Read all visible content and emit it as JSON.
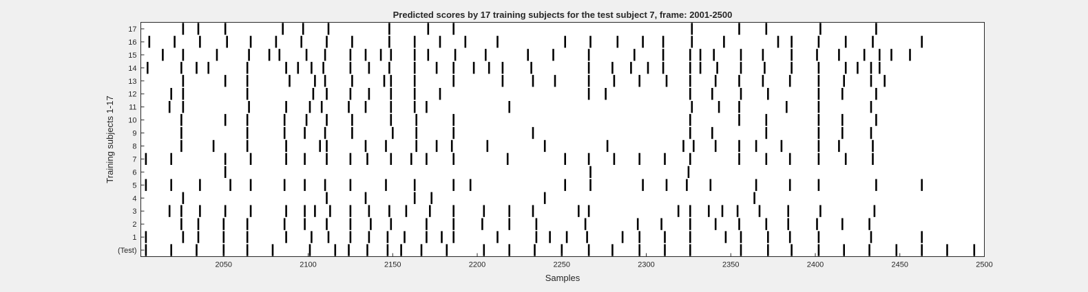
{
  "chart_data": {
    "type": "raster",
    "title": "Predicted scores by 17 training subjects for the test subject 7, frame: 2001-2500",
    "xlabel": "Samples",
    "ylabel": "Training subjects 1-17",
    "xlim": [
      2001,
      2500
    ],
    "xticks": [
      2050,
      2100,
      2150,
      2200,
      2250,
      2300,
      2350,
      2400,
      2450,
      2500
    ],
    "row_labels": [
      "(Test)",
      "1",
      "2",
      "3",
      "4",
      "5",
      "6",
      "7",
      "8",
      "9",
      "10",
      "11",
      "12",
      "13",
      "14",
      "15",
      "16",
      "17"
    ],
    "grid": false,
    "mark_color": "#000000",
    "rows": [
      [
        2004,
        2019,
        2034,
        2050,
        2064,
        2079,
        2101,
        2116,
        2124,
        2135,
        2147,
        2155,
        2167,
        2182,
        2204,
        2219,
        2234,
        2250,
        2266,
        2280,
        2296,
        2311,
        2326,
        2356,
        2372,
        2386,
        2402,
        2417,
        2432,
        2448,
        2463,
        2478,
        2494
      ],
      [
        2004,
        2026,
        2035,
        2050,
        2064,
        2087,
        2102,
        2112,
        2125,
        2136,
        2147,
        2157,
        2170,
        2179,
        2186,
        2212,
        2235,
        2243,
        2253,
        2265,
        2286,
        2296,
        2311,
        2326,
        2347,
        2356,
        2372,
        2385,
        2402,
        2433,
        2463
      ],
      [
        2025,
        2035,
        2050,
        2064,
        2086,
        2098,
        2111,
        2125,
        2137,
        2149,
        2170,
        2186,
        2203,
        2219,
        2235,
        2264,
        2295,
        2309,
        2326,
        2341,
        2355,
        2371,
        2384,
        2401,
        2416,
        2432
      ],
      [
        2018,
        2025,
        2036,
        2051,
        2066,
        2087,
        2098,
        2104,
        2113,
        2125,
        2136,
        2148,
        2158,
        2172,
        2186,
        2204,
        2219,
        2233,
        2260,
        2266,
        2319,
        2326,
        2337,
        2345,
        2354,
        2367,
        2384,
        2403,
        2435
      ],
      [
        2026,
        2111,
        2134,
        2163,
        2173,
        2240,
        2364
      ],
      [
        2004,
        2019,
        2036,
        2054,
        2066,
        2086,
        2098,
        2110,
        2125,
        2146,
        2163,
        2186,
        2196,
        2252,
        2267,
        2298,
        2312,
        2324,
        2338,
        2365,
        2385,
        2402,
        2436,
        2463
      ],
      [
        2051,
        2267,
        2325
      ],
      [
        2004,
        2019,
        2051,
        2066,
        2087,
        2098,
        2111,
        2125,
        2135,
        2149,
        2161,
        2170,
        2186,
        2218,
        2252,
        2266,
        2281,
        2296,
        2311,
        2326,
        2355,
        2371,
        2385,
        2402,
        2418,
        2434
      ],
      [
        2025,
        2044,
        2064,
        2087,
        2107,
        2111,
        2134,
        2146,
        2164,
        2176,
        2185,
        2206,
        2240,
        2277,
        2322,
        2328,
        2341,
        2355,
        2365,
        2380,
        2402,
        2414,
        2434
      ],
      [
        2025,
        2064,
        2086,
        2098,
        2110,
        2126,
        2150,
        2164,
        2186,
        2233,
        2326,
        2339,
        2371,
        2402,
        2416,
        2433
      ],
      [
        2025,
        2051,
        2064,
        2086,
        2099,
        2111,
        2126,
        2149,
        2164,
        2186,
        2326,
        2355,
        2371,
        2402,
        2416,
        2436
      ],
      [
        2018,
        2026,
        2065,
        2087,
        2101,
        2108,
        2124,
        2134,
        2149,
        2163,
        2170,
        2219,
        2327,
        2343,
        2355,
        2383,
        2402,
        2433
      ],
      [
        2019,
        2026,
        2064,
        2103,
        2111,
        2125,
        2136,
        2149,
        2163,
        2178,
        2266,
        2276,
        2326,
        2339,
        2356,
        2372,
        2402,
        2416,
        2436
      ],
      [
        2026,
        2051,
        2064,
        2089,
        2104,
        2110,
        2126,
        2145,
        2149,
        2163,
        2186,
        2215,
        2233,
        2246,
        2266,
        2281,
        2296,
        2312,
        2326,
        2341,
        2355,
        2369,
        2385,
        2402,
        2417,
        2433,
        2441
      ],
      [
        2005,
        2025,
        2034,
        2041,
        2064,
        2087,
        2094,
        2102,
        2109,
        2125,
        2136,
        2148,
        2163,
        2176,
        2186,
        2198,
        2207,
        2215,
        2232,
        2266,
        2280,
        2291,
        2301,
        2310,
        2326,
        2332,
        2342,
        2356,
        2370,
        2386,
        2402,
        2418,
        2425,
        2433,
        2438
      ],
      [
        2014,
        2026,
        2046,
        2065,
        2077,
        2083,
        2099,
        2110,
        2125,
        2134,
        2143,
        2149,
        2163,
        2171,
        2187,
        2205,
        2230,
        2245,
        2266,
        2293,
        2310,
        2326,
        2332,
        2340,
        2356,
        2369,
        2386,
        2401,
        2414,
        2429,
        2438,
        2445,
        2456
      ],
      [
        2006,
        2021,
        2036,
        2052,
        2066,
        2081,
        2096,
        2111,
        2126,
        2148,
        2163,
        2178,
        2193,
        2212,
        2252,
        2267,
        2283,
        2298,
        2310,
        2327,
        2346,
        2378,
        2386,
        2402,
        2418,
        2434,
        2463
      ],
      [
        2026,
        2035,
        2051,
        2085,
        2097,
        2112,
        2148,
        2171,
        2186,
        2327,
        2355,
        2371,
        2403,
        2436
      ]
    ]
  }
}
